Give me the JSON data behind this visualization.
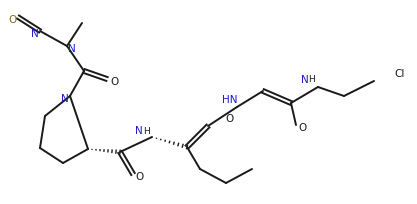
{
  "bg": "#ffffff",
  "lc": "#1a1a1a",
  "nc": "#1a1acc",
  "oc": "#8B6914",
  "clc": "#1a1a1a",
  "fs": 7.5,
  "lw": 1.4,
  "figsize": [
    4.17,
    2.05
  ],
  "dpi": 100,
  "xlim": [
    0,
    417
  ],
  "ylim": [
    0,
    205
  ]
}
